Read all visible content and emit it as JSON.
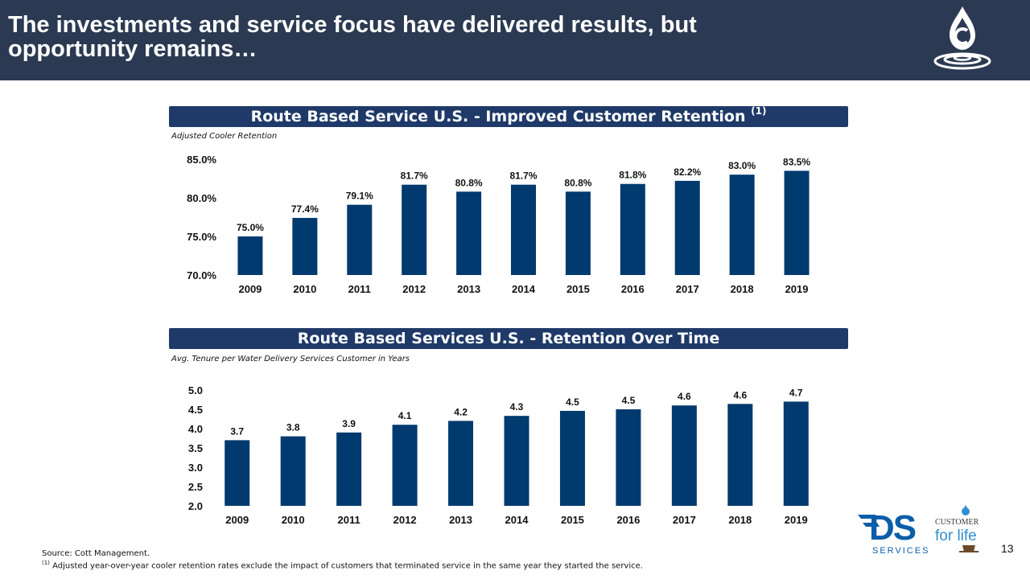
{
  "header": {
    "title": "The investments and service focus have delivered results, but opportunity remains…"
  },
  "brand": {
    "ds_text": "DS",
    "services_text": "SERVICES",
    "customer_text": "CUSTOMER",
    "forlife_text": "for life",
    "header_bg": "#2b3a52",
    "bar_color": "#003a6e",
    "section_bg": "#1f3a68"
  },
  "section1": {
    "title": "Route Based Service U.S. - Improved Customer Retention",
    "footnote_ref": "(1)",
    "subtitle": "Adjusted Cooler Retention"
  },
  "section2": {
    "title": "Route Based Services U.S. - Retention Over Time",
    "subtitle": "Avg. Tenure per Water Delivery Services Customer in Years"
  },
  "chart_data": [
    {
      "type": "bar",
      "title": "Route Based Service U.S. - Improved Customer Retention",
      "categories": [
        "2009",
        "2010",
        "2011",
        "2012",
        "2013",
        "2014",
        "2015",
        "2016",
        "2017",
        "2018",
        "2019"
      ],
      "values": [
        75.0,
        77.4,
        79.1,
        81.7,
        80.8,
        81.7,
        80.8,
        81.8,
        82.2,
        83.0,
        83.5
      ],
      "value_labels": [
        "75.0%",
        "77.4%",
        "79.1%",
        "81.7%",
        "80.8%",
        "81.7%",
        "80.8%",
        "81.8%",
        "82.2%",
        "83.0%",
        "83.5%"
      ],
      "ylim": [
        70,
        85
      ],
      "yticks": [
        70,
        75,
        80,
        85
      ],
      "ytick_labels": [
        "70.0%",
        "75.0%",
        "80.0%",
        "85.0%"
      ],
      "grid": false
    },
    {
      "type": "bar",
      "title": "Route Based Services U.S. - Retention Over Time",
      "categories": [
        "2009",
        "2010",
        "2011",
        "2012",
        "2013",
        "2014",
        "2015",
        "2016",
        "2017",
        "2018",
        "2019"
      ],
      "values": [
        3.7,
        3.8,
        3.9,
        4.1,
        4.2,
        4.33,
        4.46,
        4.5,
        4.6,
        4.64,
        4.7
      ],
      "value_labels": [
        "3.7",
        "3.8",
        "3.9",
        "4.1",
        "4.2",
        "4.3",
        "4.5",
        "4.5",
        "4.6",
        "4.6",
        "4.7"
      ],
      "ylim": [
        2.0,
        5.0
      ],
      "yticks": [
        2.0,
        2.5,
        3.0,
        3.5,
        4.0,
        4.5,
        5.0
      ],
      "ytick_labels": [
        "2.0",
        "2.5",
        "3.0",
        "3.5",
        "4.0",
        "4.5",
        "5.0"
      ],
      "grid": false
    }
  ],
  "footer": {
    "source": "Source: Cott Management.",
    "note_ref": "(1)",
    "note": "Adjusted year-over-year cooler retention rates exclude the impact of customers that terminated service in the same year they started the service.",
    "page_number": "13"
  }
}
